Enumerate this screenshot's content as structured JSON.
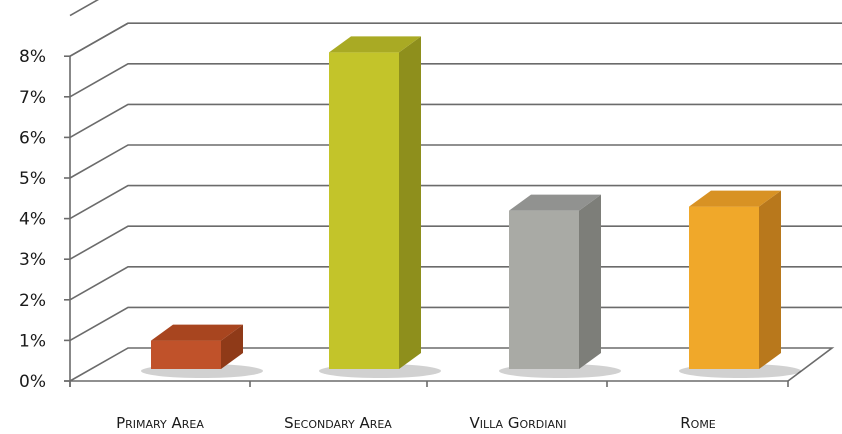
{
  "chart_data": {
    "type": "bar",
    "categories": [
      "Primary Area",
      "Secondary Area",
      "Villa Gordiani",
      "Rome"
    ],
    "values": [
      0.7,
      7.8,
      3.9,
      4.0
    ],
    "colors": {
      "Primary Area": {
        "front": "#c0522a",
        "side": "#8f3a18",
        "top": "#a8451f"
      },
      "Secondary Area": {
        "front": "#c3c42a",
        "side": "#8e8f1c",
        "top": "#a9aa24"
      },
      "Villa Gordiani": {
        "front": "#a9aaa5",
        "side": "#7d7e79",
        "top": "#919290"
      },
      "Rome": {
        "front": "#f0a82a",
        "side": "#b8781c",
        "top": "#d89224"
      }
    },
    "yticks": [
      "0%",
      "1%",
      "2%",
      "3%",
      "4%",
      "5%",
      "6%",
      "7%",
      "8%"
    ],
    "ylim": [
      0,
      8
    ],
    "title": "",
    "xlabel": "",
    "ylabel": "",
    "grid": true,
    "legend": "none"
  }
}
